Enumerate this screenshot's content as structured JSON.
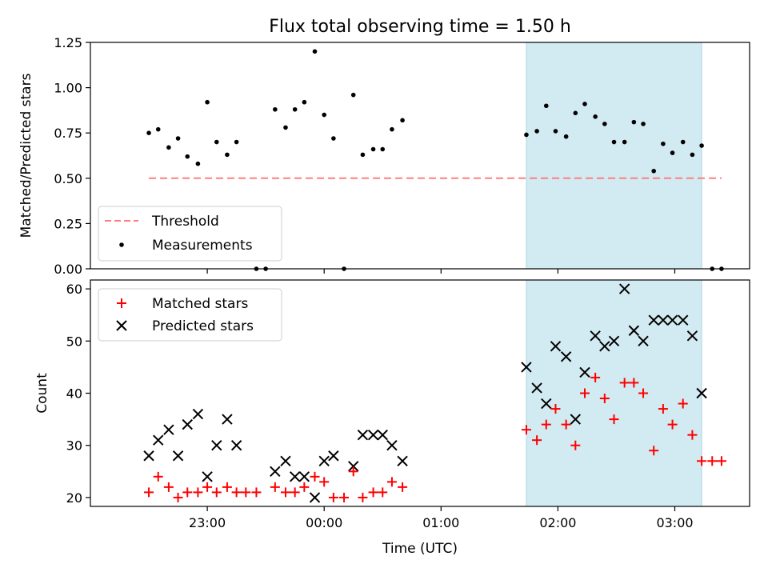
{
  "chart_data": {
    "title": "Flux total observing time = 1.50 h",
    "x_unit": "hours relative to 00:00 UTC",
    "shaded_region": {
      "x": [
        1.73,
        3.23
      ],
      "color": "#add8e6"
    },
    "panels": [
      {
        "type": "scatter",
        "ylabel": "Matched/Predicted stars",
        "ylim": [
          0,
          1.25
        ],
        "yticks": [
          0.0,
          0.25,
          0.5,
          0.75,
          1.0,
          1.25
        ],
        "ytick_labels": [
          "0.00",
          "0.25",
          "0.50",
          "0.75",
          "1.00",
          "1.25"
        ],
        "legend_position": "lower-left",
        "threshold": {
          "name": "Threshold",
          "y": 0.5,
          "x_range": [
            -1.5,
            3.4
          ],
          "color": "#ff7f7f",
          "style": "dashed"
        },
        "series": [
          {
            "name": "Measurements",
            "marker": "dot",
            "color": "#000000",
            "points": [
              [
                -1.5,
                0.75
              ],
              [
                -1.42,
                0.77
              ],
              [
                -1.33,
                0.67
              ],
              [
                -1.25,
                0.72
              ],
              [
                -1.17,
                0.62
              ],
              [
                -1.08,
                0.58
              ],
              [
                -1.0,
                0.92
              ],
              [
                -0.92,
                0.7
              ],
              [
                -0.83,
                0.63
              ],
              [
                -0.75,
                0.7
              ],
              [
                -0.58,
                0.0
              ],
              [
                -0.5,
                0.0
              ],
              [
                -0.42,
                0.88
              ],
              [
                -0.33,
                0.78
              ],
              [
                -0.25,
                0.88
              ],
              [
                -0.17,
                0.92
              ],
              [
                -0.08,
                1.2
              ],
              [
                0.0,
                0.85
              ],
              [
                0.08,
                0.72
              ],
              [
                0.17,
                0.0
              ],
              [
                0.25,
                0.96
              ],
              [
                0.33,
                0.63
              ],
              [
                0.42,
                0.66
              ],
              [
                0.5,
                0.66
              ],
              [
                0.58,
                0.77
              ],
              [
                0.67,
                0.82
              ],
              [
                1.73,
                0.74
              ],
              [
                1.82,
                0.76
              ],
              [
                1.9,
                0.9
              ],
              [
                1.98,
                0.76
              ],
              [
                2.07,
                0.73
              ],
              [
                2.15,
                0.86
              ],
              [
                2.23,
                0.91
              ],
              [
                2.32,
                0.84
              ],
              [
                2.4,
                0.8
              ],
              [
                2.48,
                0.7
              ],
              [
                2.57,
                0.7
              ],
              [
                2.65,
                0.81
              ],
              [
                2.73,
                0.8
              ],
              [
                2.82,
                0.54
              ],
              [
                2.9,
                0.69
              ],
              [
                2.98,
                0.64
              ],
              [
                3.07,
                0.7
              ],
              [
                3.15,
                0.63
              ],
              [
                3.23,
                0.68
              ],
              [
                3.32,
                0.0
              ],
              [
                3.4,
                0.0
              ]
            ]
          }
        ]
      },
      {
        "type": "scatter",
        "xlabel": "Time (UTC)",
        "ylabel": "Count",
        "ylim": [
          18.3,
          61.7
        ],
        "yticks": [
          20,
          30,
          40,
          50,
          60
        ],
        "xticks": [
          -1.0,
          0.0,
          1.0,
          2.0,
          3.0
        ],
        "xtick_labels": [
          "23:00",
          "00:00",
          "01:00",
          "02:00",
          "03:00"
        ],
        "legend_position": "upper-left",
        "series": [
          {
            "name": "Matched stars",
            "marker": "plus",
            "color": "#ff0000",
            "points": [
              [
                -1.5,
                21
              ],
              [
                -1.42,
                24
              ],
              [
                -1.33,
                22
              ],
              [
                -1.25,
                20
              ],
              [
                -1.17,
                21
              ],
              [
                -1.08,
                21
              ],
              [
                -1.0,
                22
              ],
              [
                -0.92,
                21
              ],
              [
                -0.83,
                22
              ],
              [
                -0.75,
                21
              ],
              [
                -0.67,
                21
              ],
              [
                -0.58,
                21
              ],
              [
                -0.42,
                22
              ],
              [
                -0.33,
                21
              ],
              [
                -0.25,
                21
              ],
              [
                -0.17,
                22
              ],
              [
                -0.08,
                24
              ],
              [
                0.0,
                23
              ],
              [
                0.08,
                20
              ],
              [
                0.17,
                20
              ],
              [
                0.25,
                25
              ],
              [
                0.33,
                20
              ],
              [
                0.42,
                21
              ],
              [
                0.5,
                21
              ],
              [
                0.58,
                23
              ],
              [
                0.67,
                22
              ],
              [
                1.73,
                33
              ],
              [
                1.82,
                31
              ],
              [
                1.9,
                34
              ],
              [
                1.98,
                37
              ],
              [
                2.07,
                34
              ],
              [
                2.15,
                30
              ],
              [
                2.23,
                40
              ],
              [
                2.32,
                43
              ],
              [
                2.4,
                39
              ],
              [
                2.48,
                35
              ],
              [
                2.57,
                42
              ],
              [
                2.65,
                42
              ],
              [
                2.73,
                40
              ],
              [
                2.82,
                29
              ],
              [
                2.9,
                37
              ],
              [
                2.98,
                34
              ],
              [
                3.07,
                38
              ],
              [
                3.15,
                32
              ],
              [
                3.23,
                27
              ],
              [
                3.32,
                27
              ],
              [
                3.4,
                27
              ]
            ]
          },
          {
            "name": "Predicted stars",
            "marker": "x",
            "color": "#000000",
            "points": [
              [
                -1.5,
                28
              ],
              [
                -1.42,
                31
              ],
              [
                -1.33,
                33
              ],
              [
                -1.25,
                28
              ],
              [
                -1.17,
                34
              ],
              [
                -1.08,
                36
              ],
              [
                -1.0,
                24
              ],
              [
                -0.92,
                30
              ],
              [
                -0.83,
                35
              ],
              [
                -0.75,
                30
              ],
              [
                -0.42,
                25
              ],
              [
                -0.33,
                27
              ],
              [
                -0.25,
                24
              ],
              [
                -0.17,
                24
              ],
              [
                -0.08,
                20
              ],
              [
                0.0,
                27
              ],
              [
                0.08,
                28
              ],
              [
                0.25,
                26
              ],
              [
                0.33,
                32
              ],
              [
                0.42,
                32
              ],
              [
                0.5,
                32
              ],
              [
                0.58,
                30
              ],
              [
                0.67,
                27
              ],
              [
                1.73,
                45
              ],
              [
                1.82,
                41
              ],
              [
                1.9,
                38
              ],
              [
                1.98,
                49
              ],
              [
                2.07,
                47
              ],
              [
                2.15,
                35
              ],
              [
                2.23,
                44
              ],
              [
                2.32,
                51
              ],
              [
                2.4,
                49
              ],
              [
                2.48,
                50
              ],
              [
                2.57,
                60
              ],
              [
                2.65,
                52
              ],
              [
                2.73,
                50
              ],
              [
                2.82,
                54
              ],
              [
                2.9,
                54
              ],
              [
                2.98,
                54
              ],
              [
                3.07,
                54
              ],
              [
                3.15,
                51
              ],
              [
                3.23,
                40
              ]
            ]
          }
        ]
      }
    ]
  }
}
